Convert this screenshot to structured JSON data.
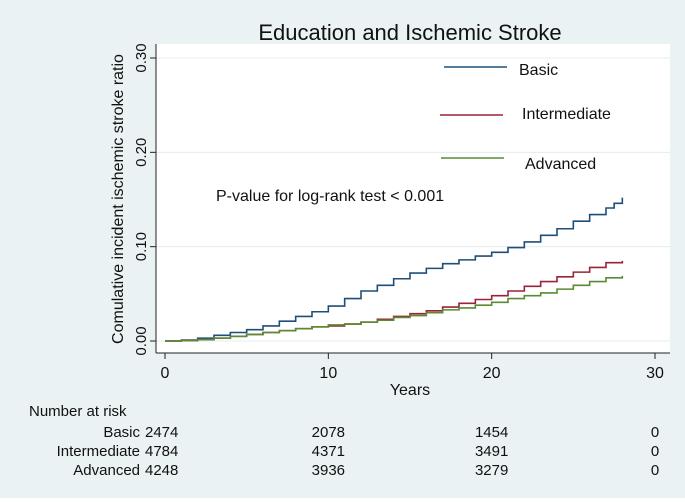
{
  "chart_data": {
    "type": "line",
    "title": "Education and Ischemic Stroke",
    "xlabel": "Years",
    "ylabel": "Comulative incident ischemic stroke ratio",
    "xlim": [
      0,
      30
    ],
    "ylim": [
      0,
      0.3
    ],
    "xticks": [
      0,
      10,
      20,
      30
    ],
    "xtick_labels": [
      "0",
      "10",
      "20",
      "30"
    ],
    "yticks": [
      0,
      0.1,
      0.2,
      0.3
    ],
    "ytick_labels": [
      "0.00",
      "0.10",
      "0.20",
      "0.30"
    ],
    "grid": true,
    "legend_position": "top-right",
    "annotation": "P-value for log-rank test < 0.001",
    "series": [
      {
        "name": "Basic",
        "color": "#1f4e79",
        "x": [
          0,
          1,
          2,
          3,
          4,
          5,
          6,
          7,
          8,
          9,
          10,
          11,
          12,
          13,
          14,
          15,
          16,
          17,
          18,
          19,
          20,
          21,
          22,
          23,
          24,
          25,
          26,
          27,
          27.5,
          28
        ],
        "y": [
          0,
          0.001,
          0.003,
          0.006,
          0.009,
          0.012,
          0.016,
          0.021,
          0.026,
          0.031,
          0.037,
          0.045,
          0.053,
          0.059,
          0.066,
          0.072,
          0.077,
          0.082,
          0.086,
          0.09,
          0.094,
          0.099,
          0.105,
          0.112,
          0.119,
          0.127,
          0.134,
          0.141,
          0.146,
          0.152
        ]
      },
      {
        "name": "Intermediate",
        "color": "#9b2335",
        "x": [
          0,
          1,
          2,
          3,
          4,
          5,
          6,
          7,
          8,
          9,
          10,
          11,
          12,
          13,
          14,
          15,
          16,
          17,
          18,
          19,
          20,
          21,
          22,
          23,
          24,
          25,
          26,
          27,
          28
        ],
        "y": [
          0,
          0.0005,
          0.0015,
          0.003,
          0.005,
          0.007,
          0.009,
          0.011,
          0.013,
          0.015,
          0.016,
          0.018,
          0.02,
          0.023,
          0.026,
          0.029,
          0.032,
          0.036,
          0.04,
          0.044,
          0.048,
          0.053,
          0.058,
          0.063,
          0.068,
          0.073,
          0.078,
          0.083,
          0.085
        ]
      },
      {
        "name": "Advanced",
        "color": "#5a8a32",
        "x": [
          0,
          1,
          2,
          3,
          4,
          5,
          6,
          7,
          8,
          9,
          10,
          11,
          12,
          13,
          14,
          15,
          16,
          17,
          18,
          19,
          20,
          21,
          22,
          23,
          24,
          25,
          26,
          27,
          28
        ],
        "y": [
          0,
          0.0005,
          0.0015,
          0.003,
          0.005,
          0.007,
          0.009,
          0.011,
          0.013,
          0.015,
          0.017,
          0.018,
          0.02,
          0.022,
          0.025,
          0.027,
          0.03,
          0.033,
          0.035,
          0.038,
          0.041,
          0.045,
          0.048,
          0.051,
          0.055,
          0.059,
          0.063,
          0.067,
          0.069
        ]
      }
    ],
    "risk_table": {
      "title": "Number at risk",
      "time_points": [
        0,
        10,
        20,
        30
      ],
      "rows": [
        {
          "label": "Basic",
          "values": [
            "2474",
            "2078",
            "1454",
            "0"
          ]
        },
        {
          "label": "Intermediate",
          "values": [
            "4784",
            "4371",
            "3491",
            "0"
          ]
        },
        {
          "label": "Advanced",
          "values": [
            "4248",
            "3936",
            "3279",
            "0"
          ]
        }
      ]
    }
  }
}
